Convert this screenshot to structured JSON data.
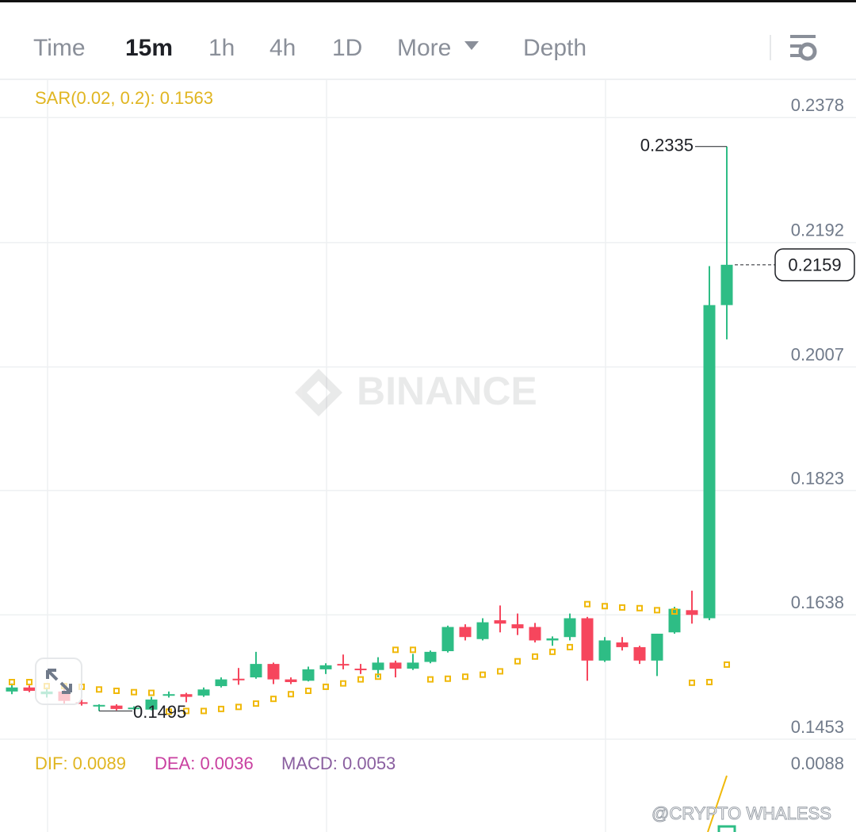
{
  "tabs": [
    "Time",
    "15m",
    "1h",
    "4h",
    "1D",
    "More",
    "Depth"
  ],
  "active_tab": "15m",
  "watermark": "BINANCE",
  "credit": "@CRYPTO WHALESS",
  "sar_legend": "SAR(0.02, 0.2): 0.1563",
  "macd_legend": {
    "dif": "DIF: 0.0089",
    "dea": "DEA: 0.0036",
    "macd": "MACD: 0.0053"
  },
  "macd_yticks": [
    0.0088
  ],
  "chart_data": {
    "type": "candlestick",
    "up_color": "#2ebd85",
    "down_color": "#f6465d",
    "sar_color": "#f0b90b",
    "ylim": [
      0.1453,
      0.2435
    ],
    "yticks": [
      0.2378,
      0.2192,
      0.2007,
      0.1823,
      0.1638,
      0.1453
    ],
    "grid": true,
    "open": [
      0.1524,
      0.153,
      0.152,
      0.1524,
      0.1508,
      0.1503,
      0.1503,
      0.1499,
      0.1497,
      0.1518,
      0.152,
      0.1518,
      0.1532,
      0.1543,
      0.1545,
      0.1565,
      0.1542,
      0.154,
      0.1557,
      0.1565,
      0.1558,
      0.1556,
      0.1567,
      0.1558,
      0.1568,
      0.1584,
      0.162,
      0.1602,
      0.163,
      0.1624,
      0.162,
      0.16,
      0.1605,
      0.1633,
      0.157,
      0.1597,
      0.159,
      0.157,
      0.1612,
      0.1645,
      0.1633,
      0.2099
    ],
    "high": [
      0.1536,
      0.1533,
      0.153,
      0.153,
      0.1512,
      0.1505,
      0.1505,
      0.1502,
      0.1516,
      0.1524,
      0.1522,
      0.153,
      0.1545,
      0.1559,
      0.1583,
      0.1567,
      0.1545,
      0.1561,
      0.1566,
      0.1579,
      0.1565,
      0.1575,
      0.157,
      0.158,
      0.1585,
      0.1622,
      0.1624,
      0.1633,
      0.1652,
      0.164,
      0.1626,
      0.1606,
      0.164,
      0.1635,
      0.1605,
      0.1605,
      0.1592,
      0.161,
      0.165,
      0.1674,
      0.2157,
      0.2335
    ],
    "low": [
      0.152,
      0.1523,
      0.1515,
      0.1505,
      0.1503,
      0.1495,
      0.1496,
      0.1497,
      0.1496,
      0.1515,
      0.1508,
      0.1516,
      0.153,
      0.1534,
      0.1543,
      0.1535,
      0.1535,
      0.1539,
      0.155,
      0.1557,
      0.155,
      0.1545,
      0.1545,
      0.1556,
      0.1566,
      0.1582,
      0.16,
      0.16,
      0.1612,
      0.1608,
      0.1597,
      0.1592,
      0.16,
      0.154,
      0.1568,
      0.1585,
      0.1565,
      0.1547,
      0.161,
      0.1625,
      0.163,
      0.2048
    ],
    "close": [
      0.153,
      0.1525,
      0.1524,
      0.151,
      0.1506,
      0.1504,
      0.1498,
      0.15,
      0.1512,
      0.152,
      0.1516,
      0.1527,
      0.1542,
      0.1541,
      0.1565,
      0.1542,
      0.1538,
      0.1557,
      0.1563,
      0.1563,
      0.1556,
      0.1567,
      0.1558,
      0.1567,
      0.1583,
      0.162,
      0.1605,
      0.1627,
      0.1625,
      0.1618,
      0.16,
      0.1603,
      0.1633,
      0.157,
      0.16,
      0.159,
      0.157,
      0.161,
      0.1647,
      0.1638,
      0.2099,
      0.2159
    ],
    "sar": [
      0.1538,
      0.1538,
      0.1532,
      0.1532,
      0.1531,
      0.1527,
      0.1525,
      0.1523,
      0.1522,
      0.1494,
      0.1495,
      0.1495,
      0.1498,
      0.1501,
      0.1506,
      0.1513,
      0.152,
      0.1525,
      0.1531,
      0.1536,
      0.1542,
      0.1546,
      0.1586,
      0.1586,
      0.1542,
      0.1543,
      0.1546,
      0.1549,
      0.1554,
      0.1569,
      0.1576,
      0.1583,
      0.159,
      0.1654,
      0.1651,
      0.1649,
      0.1648,
      0.1645,
      0.1643,
      0.1537,
      0.1538,
      0.1564
    ]
  }
}
